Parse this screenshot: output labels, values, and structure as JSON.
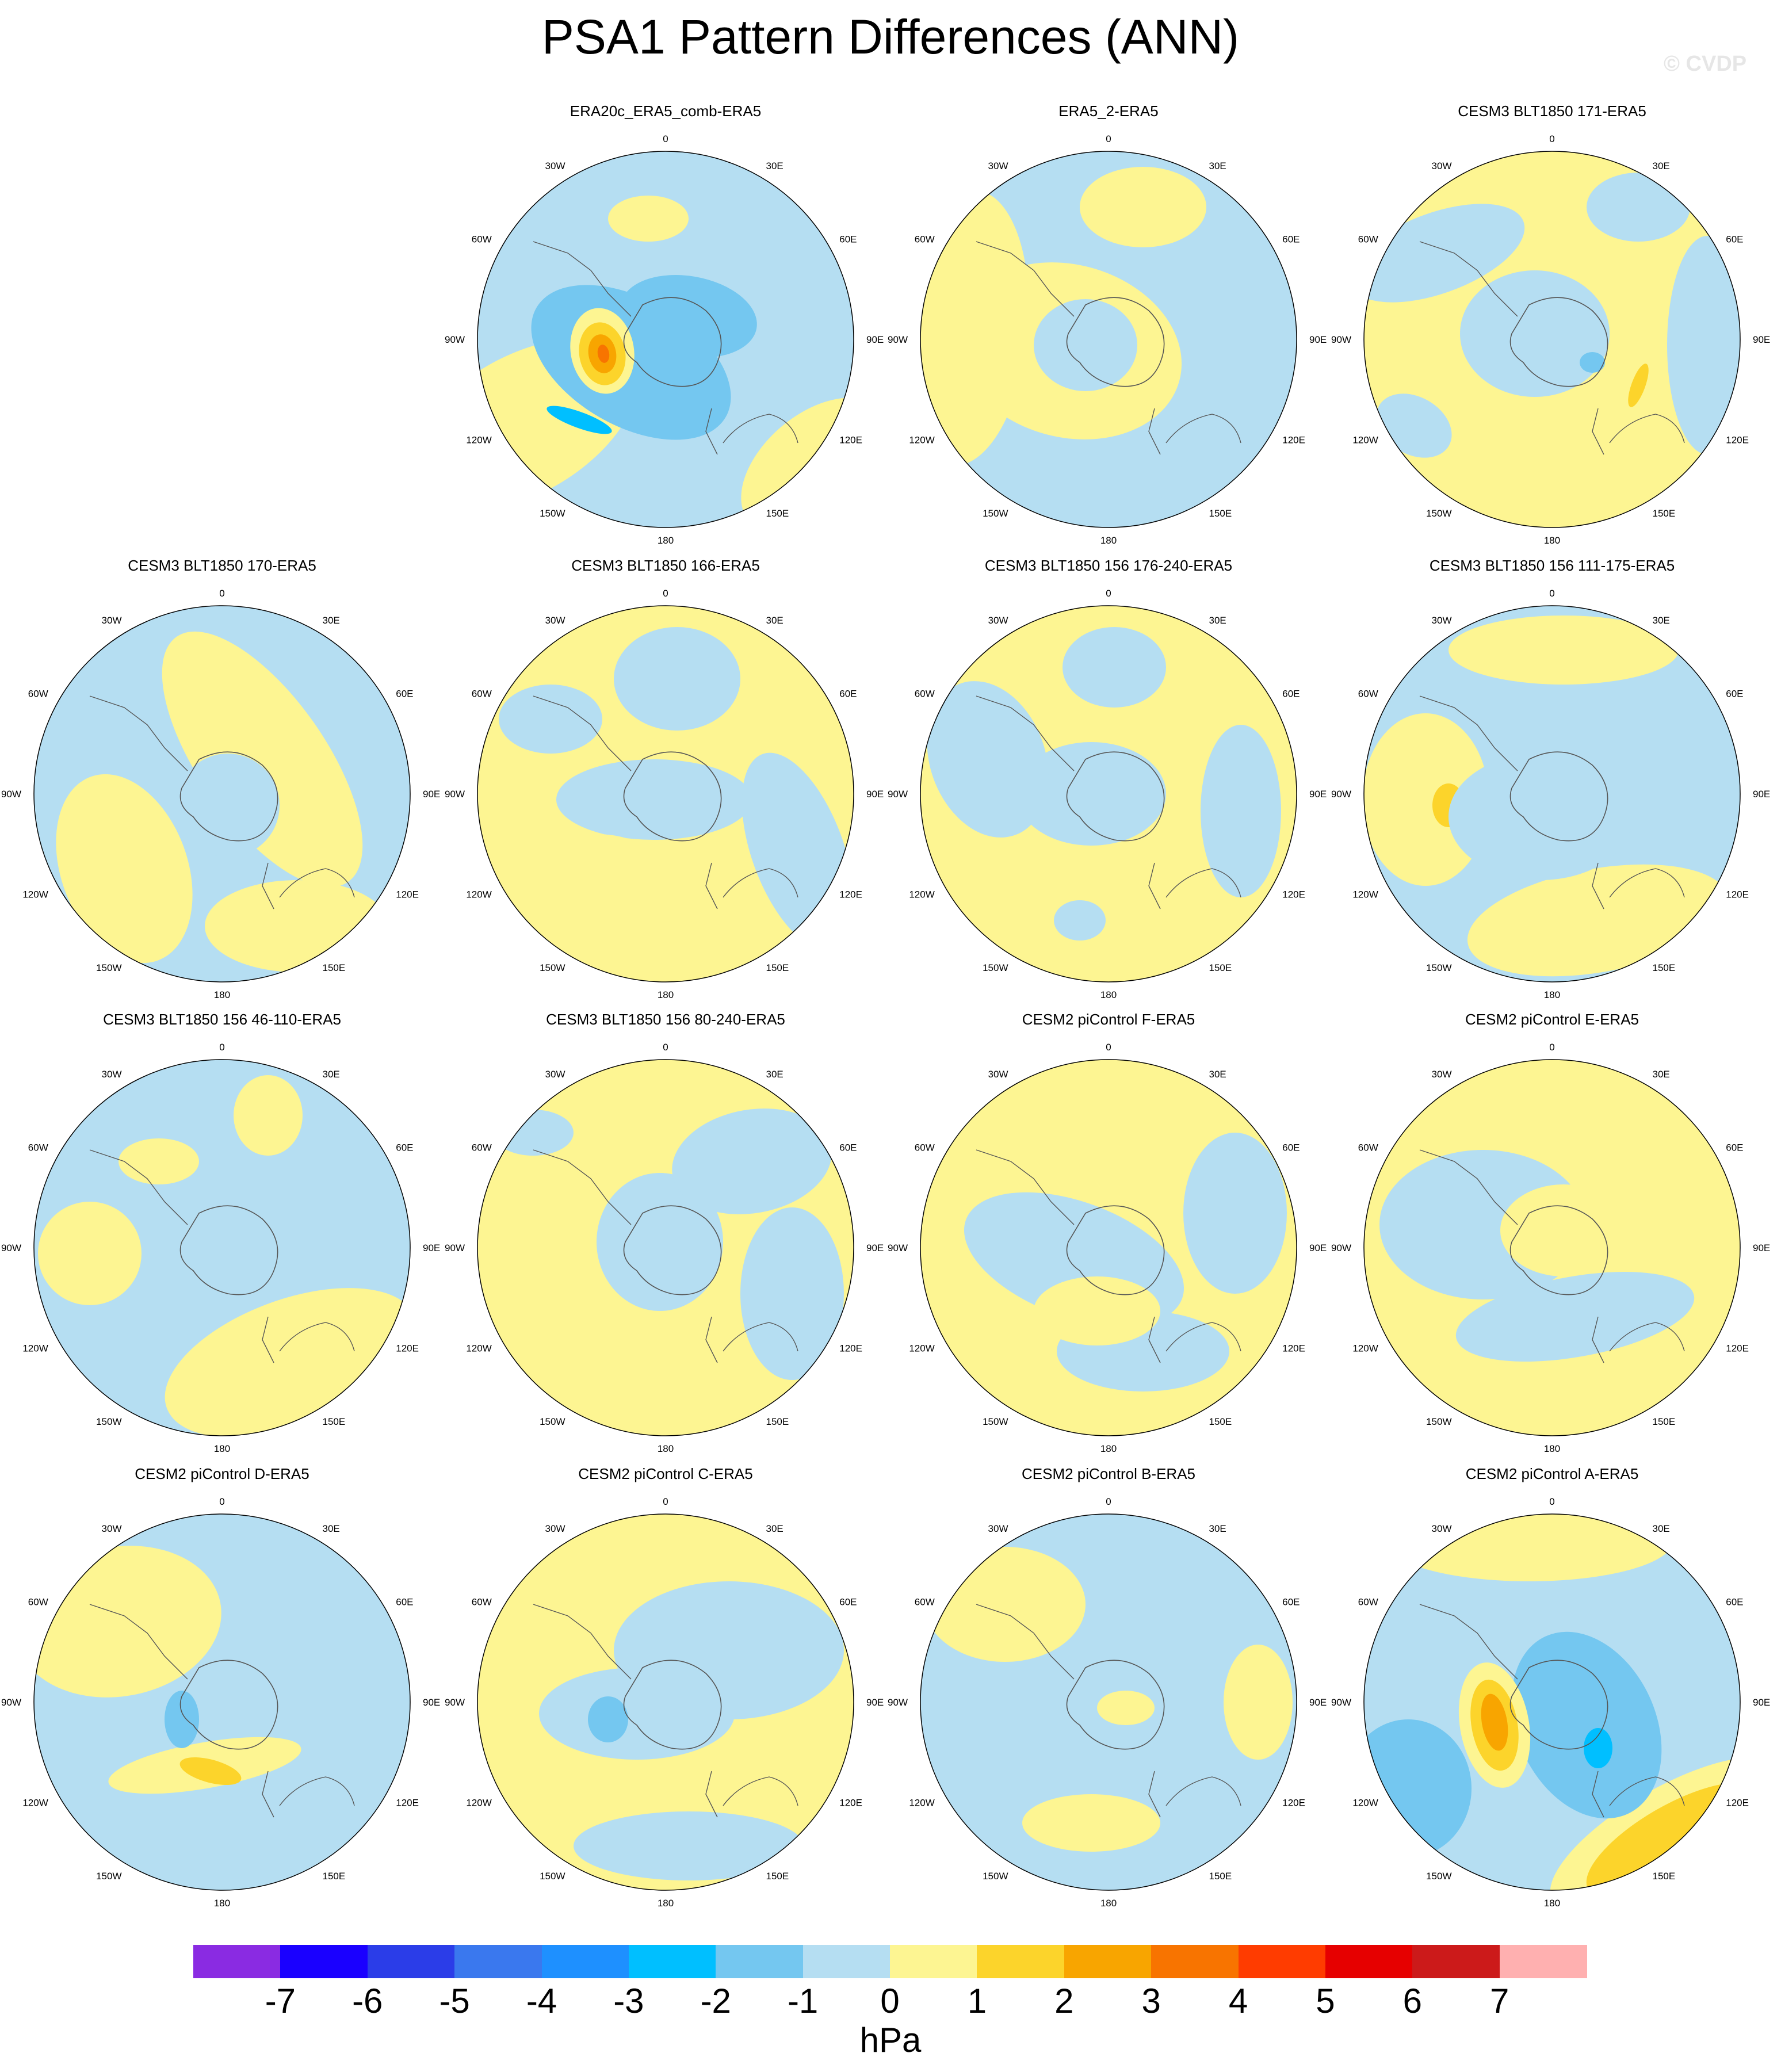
{
  "title": "PSA1 Pattern Differences (ANN)",
  "watermark": "© CVDP",
  "chart_data": {
    "type": "heatmap",
    "projection": "south polar stereographic",
    "longitude_labels": [
      "0",
      "30E",
      "60E",
      "90E",
      "120E",
      "150E",
      "180",
      "150W",
      "120W",
      "90W",
      "60W",
      "30W"
    ],
    "colorbar": {
      "units": "hPa",
      "tick_labels": [
        "-7",
        "-6",
        "-5",
        "-4",
        "-3",
        "-2",
        "-1",
        "0",
        "1",
        "2",
        "3",
        "4",
        "5",
        "6",
        "7"
      ],
      "colors": [
        "#8a2be2",
        "#1a00ff",
        "#2b3de8",
        "#3a78ee",
        "#1e90ff",
        "#00bfff",
        "#74c7f0",
        "#b5def2",
        "#fdf592",
        "#fcd42b",
        "#f8a500",
        "#f87400",
        "#ff3c00",
        "#e60000",
        "#cc1a1a",
        "#ffb0b0"
      ]
    },
    "panels": [
      {
        "title": "ERA20c_ERA5_comb-ERA5",
        "row": 0,
        "col": 1
      },
      {
        "title": "ERA5_2-ERA5",
        "row": 0,
        "col": 2
      },
      {
        "title": "CESM3 BLT1850 171-ERA5",
        "row": 0,
        "col": 3
      },
      {
        "title": "CESM3 BLT1850 170-ERA5",
        "row": 1,
        "col": 0
      },
      {
        "title": "CESM3 BLT1850 166-ERA5",
        "row": 1,
        "col": 1
      },
      {
        "title": "CESM3 BLT1850 156 176-240-ERA5",
        "row": 1,
        "col": 2
      },
      {
        "title": "CESM3 BLT1850 156 111-175-ERA5",
        "row": 1,
        "col": 3
      },
      {
        "title": "CESM3 BLT1850 156 46-110-ERA5",
        "row": 2,
        "col": 0
      },
      {
        "title": "CESM3 BLT1850 156 80-240-ERA5",
        "row": 2,
        "col": 1
      },
      {
        "title": "CESM2 piControl F-ERA5",
        "row": 2,
        "col": 2
      },
      {
        "title": "CESM2 piControl E-ERA5",
        "row": 2,
        "col": 3
      },
      {
        "title": "CESM2 piControl D-ERA5",
        "row": 3,
        "col": 0
      },
      {
        "title": "CESM2 piControl C-ERA5",
        "row": 3,
        "col": 1
      },
      {
        "title": "CESM2 piControl B-ERA5",
        "row": 3,
        "col": 2
      },
      {
        "title": "CESM2 piControl A-ERA5",
        "row": 3,
        "col": 3
      }
    ]
  }
}
